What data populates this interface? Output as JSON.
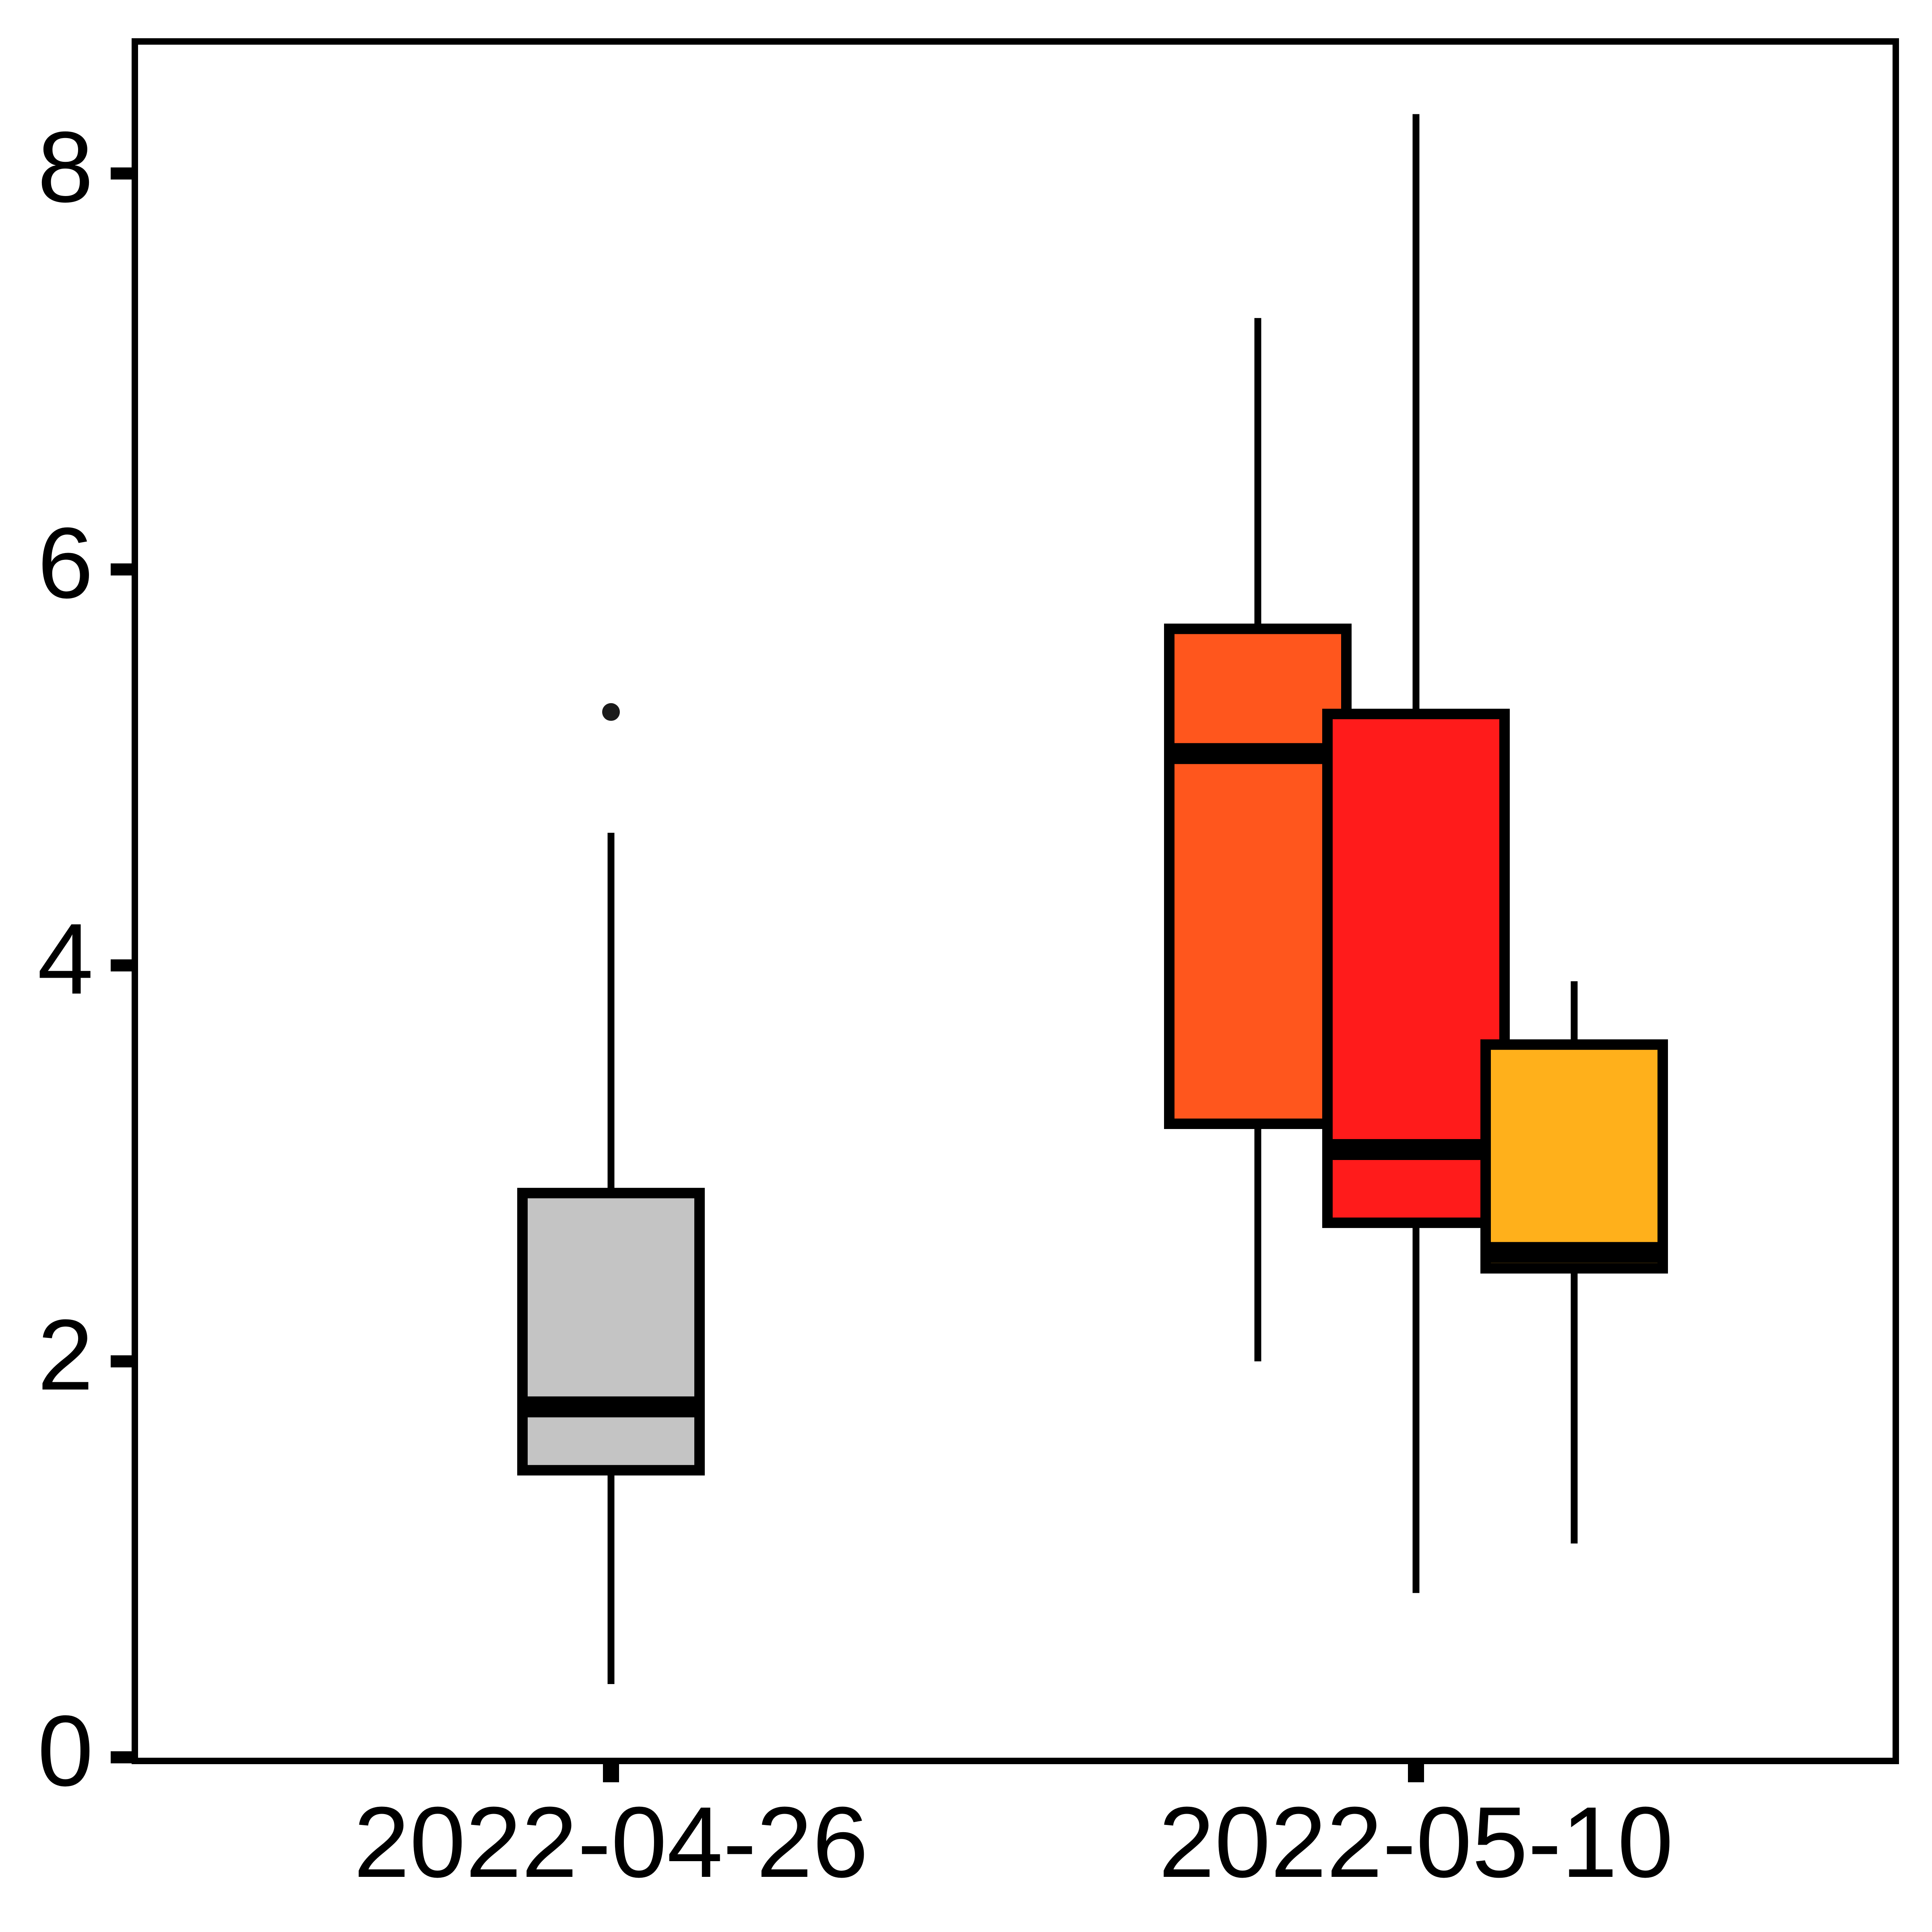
{
  "chart_data": {
    "type": "box",
    "title": "",
    "xlabel": "",
    "ylabel": "",
    "ylim": [
      0,
      8.65
    ],
    "y_ticks": [
      0,
      2,
      4,
      6,
      8
    ],
    "x_tick_labels": [
      "2022-04-26",
      "2022-05-10"
    ],
    "grid": false,
    "legend": "none",
    "boxes": [
      {
        "group": "2022-04-26",
        "slot": 0,
        "color": "#c4c4c4",
        "whisker_low": 0.37,
        "q1": 1.45,
        "median": 1.77,
        "q3": 2.85,
        "whisker_high": 4.67,
        "outliers": [
          5.28
        ]
      },
      {
        "group": "2022-05-10",
        "slot": -1,
        "color": "#ff561d",
        "whisker_low": 2.0,
        "q1": 3.2,
        "median": 5.07,
        "q3": 5.7,
        "whisker_high": 7.27,
        "outliers": []
      },
      {
        "group": "2022-05-10",
        "slot": 0,
        "color": "#ff1b1b",
        "whisker_low": 0.83,
        "q1": 2.7,
        "median": 3.07,
        "q3": 5.27,
        "whisker_high": 8.3,
        "outliers": []
      },
      {
        "group": "2022-05-10",
        "slot": 1,
        "color": "#ffb01b",
        "whisker_low": 1.08,
        "q1": 2.47,
        "median": 2.55,
        "q3": 3.6,
        "whisker_high": 3.92,
        "outliers": []
      }
    ]
  }
}
